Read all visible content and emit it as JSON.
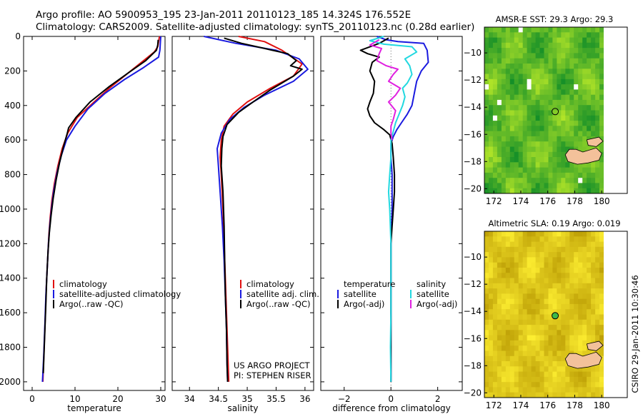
{
  "header": {
    "line1": "Argo profile: AO 5900953_195 23-Jan-2011 20110123_185 14.324S 176.552E",
    "line2": "Climatology: CARS2009. Satellite-adjusted climatology: synTS_20110123.nc (0.28d earlier)"
  },
  "colors": {
    "climatology": "#e01010",
    "satellite": "#1a1adf",
    "argo": "#000000",
    "salinity_sat": "#22d8e0",
    "salinity_argo": "#e020e0"
  },
  "chart_data": [
    {
      "type": "line",
      "id": "temperature",
      "xlabel": "temperature",
      "ylabel": "",
      "xlim": [
        -2,
        31
      ],
      "ylim": [
        2050,
        0
      ],
      "xticks": [
        0,
        10,
        20,
        30
      ],
      "yticks": [
        0,
        200,
        400,
        600,
        800,
        1000,
        1200,
        1400,
        1600,
        1800,
        2000
      ],
      "series": [
        {
          "name": "climatology",
          "color": "#e01010",
          "points": [
            [
              29.7,
              0
            ],
            [
              29.5,
              30
            ],
            [
              29.3,
              60
            ],
            [
              28.5,
              90
            ],
            [
              26,
              140
            ],
            [
              22,
              220
            ],
            [
              18,
              300
            ],
            [
              14,
              390
            ],
            [
              10.5,
              470
            ],
            [
              8.3,
              560
            ],
            [
              7,
              650
            ],
            [
              6,
              750
            ],
            [
              5.2,
              850
            ],
            [
              4.6,
              950
            ],
            [
              4.2,
              1050
            ],
            [
              3.9,
              1150
            ],
            [
              3.6,
              1300
            ],
            [
              3.3,
              1450
            ],
            [
              3.1,
              1600
            ],
            [
              2.8,
              1800
            ],
            [
              2.5,
              2000
            ]
          ]
        },
        {
          "name": "satellite-adjusted climatology",
          "color": "#1a1adf",
          "points": [
            [
              30,
              0
            ],
            [
              29.9,
              40
            ],
            [
              29.8,
              80
            ],
            [
              29.5,
              120
            ],
            [
              26,
              180
            ],
            [
              21.5,
              250
            ],
            [
              17,
              330
            ],
            [
              13,
              420
            ],
            [
              10,
              520
            ],
            [
              8,
              600
            ],
            [
              6.8,
              690
            ],
            [
              5.8,
              790
            ],
            [
              5,
              900
            ],
            [
              4.5,
              1000
            ],
            [
              4.1,
              1100
            ],
            [
              3.8,
              1200
            ],
            [
              3.5,
              1350
            ],
            [
              3.2,
              1500
            ],
            [
              3,
              1650
            ],
            [
              2.7,
              1850
            ],
            [
              2.4,
              2000
            ]
          ]
        },
        {
          "name": "Argo(..raw -QC)",
          "color": "#000000",
          "points": [
            [
              29.4,
              20
            ],
            [
              29.3,
              50
            ],
            [
              29,
              80
            ],
            [
              26.5,
              140
            ],
            [
              22.5,
              210
            ],
            [
              18,
              290
            ],
            [
              13.5,
              380
            ],
            [
              10.2,
              470
            ],
            [
              8.5,
              530
            ],
            [
              8.2,
              560
            ],
            [
              7.3,
              640
            ],
            [
              6.4,
              730
            ],
            [
              5.6,
              830
            ],
            [
              4.9,
              940
            ],
            [
              4.4,
              1040
            ],
            [
              4,
              1140
            ],
            [
              3.7,
              1250
            ],
            [
              3.4,
              1400
            ],
            [
              3.2,
              1550
            ],
            [
              2.9,
              1750
            ],
            [
              2.6,
              1950
            ]
          ]
        }
      ],
      "legend": [
        "climatology",
        "satellite-adjusted climatology",
        "Argo(..raw -QC)"
      ]
    },
    {
      "type": "line",
      "id": "salinity",
      "xlabel": "salinity",
      "ylabel": "",
      "xlim": [
        33.7,
        36.15
      ],
      "ylim": [
        2050,
        0
      ],
      "xticks": [
        34,
        34.5,
        35,
        35.5,
        36
      ],
      "xticklabels": [
        "34",
        "34.5",
        "35",
        "35.5",
        "36"
      ],
      "series": [
        {
          "name": "climatology",
          "color": "#e01010",
          "points": [
            [
              34.85,
              0
            ],
            [
              35.3,
              30
            ],
            [
              35.6,
              80
            ],
            [
              35.95,
              160
            ],
            [
              35.8,
              230
            ],
            [
              35.4,
              300
            ],
            [
              35.0,
              380
            ],
            [
              34.75,
              450
            ],
            [
              34.6,
              520
            ],
            [
              34.55,
              600
            ],
            [
              34.53,
              700
            ],
            [
              34.55,
              800
            ],
            [
              34.58,
              1000
            ],
            [
              34.6,
              1200
            ],
            [
              34.62,
              1400
            ],
            [
              34.64,
              1600
            ],
            [
              34.66,
              1800
            ],
            [
              34.68,
              2000
            ]
          ]
        },
        {
          "name": "satellite adj. clim.",
          "color": "#1a1adf",
          "points": [
            [
              34.25,
              0
            ],
            [
              34.8,
              40
            ],
            [
              35.5,
              80
            ],
            [
              35.9,
              130
            ],
            [
              36.05,
              190
            ],
            [
              35.8,
              260
            ],
            [
              35.3,
              340
            ],
            [
              34.95,
              410
            ],
            [
              34.7,
              480
            ],
            [
              34.55,
              560
            ],
            [
              34.48,
              650
            ],
            [
              34.5,
              750
            ],
            [
              34.53,
              900
            ],
            [
              34.57,
              1100
            ],
            [
              34.6,
              1300
            ],
            [
              34.62,
              1500
            ],
            [
              34.64,
              1700
            ],
            [
              34.65,
              1900
            ],
            [
              34.66,
              2000
            ]
          ]
        },
        {
          "name": "Argo(..raw -QC)",
          "color": "#000000",
          "points": [
            [
              34.6,
              10
            ],
            [
              34.9,
              40
            ],
            [
              35.3,
              70
            ],
            [
              35.7,
              100
            ],
            [
              35.85,
              140
            ],
            [
              35.75,
              170
            ],
            [
              35.95,
              190
            ],
            [
              35.8,
              230
            ],
            [
              35.4,
              310
            ],
            [
              35.1,
              380
            ],
            [
              34.85,
              440
            ],
            [
              34.65,
              510
            ],
            [
              34.58,
              580
            ],
            [
              34.56,
              650
            ],
            [
              34.55,
              750
            ],
            [
              34.58,
              900
            ],
            [
              34.6,
              1100
            ],
            [
              34.61,
              1300
            ],
            [
              34.62,
              1500
            ],
            [
              34.64,
              1700
            ],
            [
              34.65,
              1900
            ],
            [
              34.66,
              2000
            ]
          ]
        }
      ],
      "legend": [
        "climatology",
        "satellite adj. clim.",
        "Argo(..raw -QC)"
      ],
      "annotation": [
        "US ARGO PROJECT",
        "PI: STEPHEN RISER"
      ]
    },
    {
      "type": "line",
      "id": "difference",
      "xlabel": "difference from climatology",
      "ylabel": "",
      "xlim": [
        -3,
        3.05
      ],
      "ylim": [
        2050,
        0
      ],
      "xticks": [
        -2,
        0,
        2
      ],
      "xticklabels": [
        "−2",
        "0",
        "2"
      ],
      "series": [
        {
          "name": "temperature satellite",
          "color": "#1a1adf",
          "points": [
            [
              -0.6,
              0
            ],
            [
              -0.2,
              20
            ],
            [
              0.3,
              30
            ],
            [
              1.4,
              40
            ],
            [
              1.55,
              80
            ],
            [
              1.6,
              150
            ],
            [
              1.3,
              200
            ],
            [
              1.1,
              260
            ],
            [
              1.0,
              330
            ],
            [
              0.9,
              400
            ],
            [
              0.7,
              450
            ],
            [
              0.45,
              500
            ],
            [
              0.25,
              540
            ],
            [
              0.1,
              580
            ],
            [
              0,
              620
            ],
            [
              0,
              700
            ],
            [
              0.05,
              800
            ],
            [
              0.05,
              1000
            ],
            [
              0,
              1200
            ],
            [
              0,
              1500
            ],
            [
              0,
              1800
            ],
            [
              0,
              2000
            ]
          ]
        },
        {
          "name": "temperature Argo(-adj)",
          "color": "#000000",
          "points": [
            [
              -0.1,
              10
            ],
            [
              -0.5,
              40
            ],
            [
              -1.3,
              80
            ],
            [
              -1.0,
              100
            ],
            [
              -0.5,
              120
            ],
            [
              -0.8,
              150
            ],
            [
              -0.9,
              200
            ],
            [
              -0.7,
              260
            ],
            [
              -0.75,
              330
            ],
            [
              -0.9,
              380
            ],
            [
              -1.0,
              420
            ],
            [
              -0.9,
              460
            ],
            [
              -0.7,
              500
            ],
            [
              -0.3,
              540
            ],
            [
              -0.05,
              570
            ],
            [
              0.05,
              620
            ],
            [
              0.1,
              700
            ],
            [
              0.15,
              800
            ],
            [
              0.15,
              900
            ],
            [
              0.1,
              1000
            ],
            [
              0.05,
              1100
            ],
            [
              0,
              1200
            ],
            [
              0,
              1500
            ],
            [
              0,
              1800
            ],
            [
              0,
              2000
            ]
          ]
        },
        {
          "name": "salinity satellite",
          "color": "#22d8e0",
          "points": [
            [
              -0.3,
              0
            ],
            [
              -0.9,
              25
            ],
            [
              -0.3,
              45
            ],
            [
              0.9,
              60
            ],
            [
              1.1,
              90
            ],
            [
              0.6,
              130
            ],
            [
              0.8,
              170
            ],
            [
              0.9,
              220
            ],
            [
              0.7,
              270
            ],
            [
              0.5,
              300
            ],
            [
              0.6,
              350
            ],
            [
              0.5,
              400
            ],
            [
              0.35,
              450
            ],
            [
              0.2,
              500
            ],
            [
              0.1,
              550
            ],
            [
              0,
              600
            ],
            [
              0,
              700
            ],
            [
              -0.05,
              800
            ],
            [
              -0.1,
              900
            ],
            [
              -0.05,
              1000
            ],
            [
              0,
              1200
            ],
            [
              0,
              1400
            ],
            [
              0,
              1600
            ],
            [
              -0.02,
              1800
            ],
            [
              0,
              2000
            ]
          ]
        },
        {
          "name": "salinity Argo(-adj)",
          "color": "#e020e0",
          "points": [
            [
              -0.5,
              20
            ],
            [
              -0.9,
              50
            ],
            [
              -0.4,
              70
            ],
            [
              -0.5,
              100
            ],
            [
              -0.6,
              140
            ],
            [
              -0.2,
              170
            ],
            [
              0.3,
              190
            ],
            [
              0.1,
              220
            ],
            [
              -0.1,
              260
            ],
            [
              0.4,
              300
            ],
            [
              0.2,
              340
            ],
            [
              -0.1,
              380
            ],
            [
              0.2,
              430
            ],
            [
              0.1,
              480
            ],
            [
              0,
              520
            ],
            [
              0,
              560
            ],
            [
              0.05,
              600
            ]
          ]
        }
      ],
      "legend_groups": [
        {
          "title": "temperature",
          "items": [
            "satellite",
            "Argo(-adj)"
          ]
        },
        {
          "title": "salinity",
          "items": [
            "satellite",
            "Argo(-adj)"
          ]
        }
      ]
    },
    {
      "type": "heatmap",
      "id": "sst-map",
      "title": "AMSR-E SST: 29.3 Argo: 29.3",
      "xlim": [
        171.3,
        181.9
      ],
      "ylim": [
        -20.35,
        -8.1
      ],
      "xticks": [
        172,
        174,
        176,
        178,
        180
      ],
      "yticks": [
        -10,
        -12,
        -14,
        -16,
        -18,
        -20
      ],
      "marker": {
        "lon": 176.55,
        "lat": -14.32,
        "filled": false
      }
    },
    {
      "type": "heatmap",
      "id": "sla-map",
      "title": "Altimetric SLA: 0.19 Argo: 0.019",
      "xlim": [
        171.3,
        181.9
      ],
      "ylim": [
        -20.35,
        -8.1
      ],
      "xticks": [
        172,
        174,
        176,
        178,
        180
      ],
      "yticks": [
        -10,
        -12,
        -14,
        -16,
        -18,
        -20
      ],
      "marker": {
        "lon": 176.55,
        "lat": -14.32,
        "filled": true
      }
    }
  ],
  "stamp": "CSIRO 29-Jan-2011 10:30:46"
}
